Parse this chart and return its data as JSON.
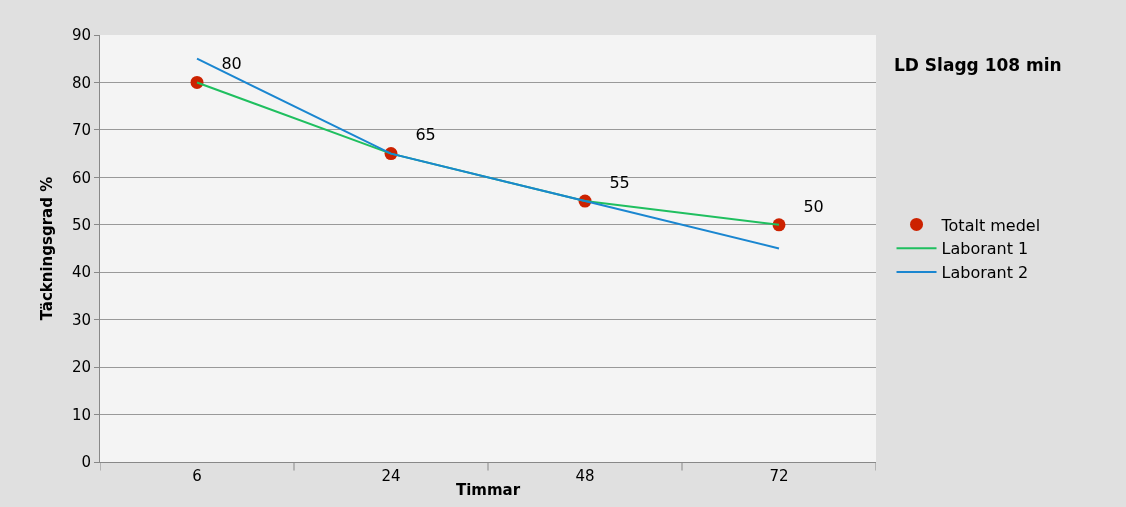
{
  "chart_data": {
    "type": "line",
    "title": "LD Slagg 108 min",
    "xlabel": "Timmar",
    "ylabel": "Täckningsgrad %",
    "categories": [
      "6",
      "24",
      "48",
      "72"
    ],
    "series": [
      {
        "name": "Totalt medel",
        "type": "scatter",
        "color": "#cc2200",
        "marker": "circle",
        "values": [
          80,
          65,
          55,
          50
        ],
        "value_labels": [
          "80",
          "65",
          "55",
          "50"
        ]
      },
      {
        "name": "Laborant 1",
        "color": "#1fbf5f",
        "marker": "none",
        "values": [
          80,
          65,
          55,
          50
        ]
      },
      {
        "name": "Laborant 2",
        "color": "#1a86d0",
        "marker": "none",
        "values": [
          85,
          65,
          55,
          45
        ]
      }
    ],
    "ylim": [
      0,
      90
    ],
    "yticks": [
      0,
      10,
      20,
      30,
      40,
      50,
      60,
      70,
      80,
      90
    ],
    "grid": "y",
    "legend": "right"
  }
}
